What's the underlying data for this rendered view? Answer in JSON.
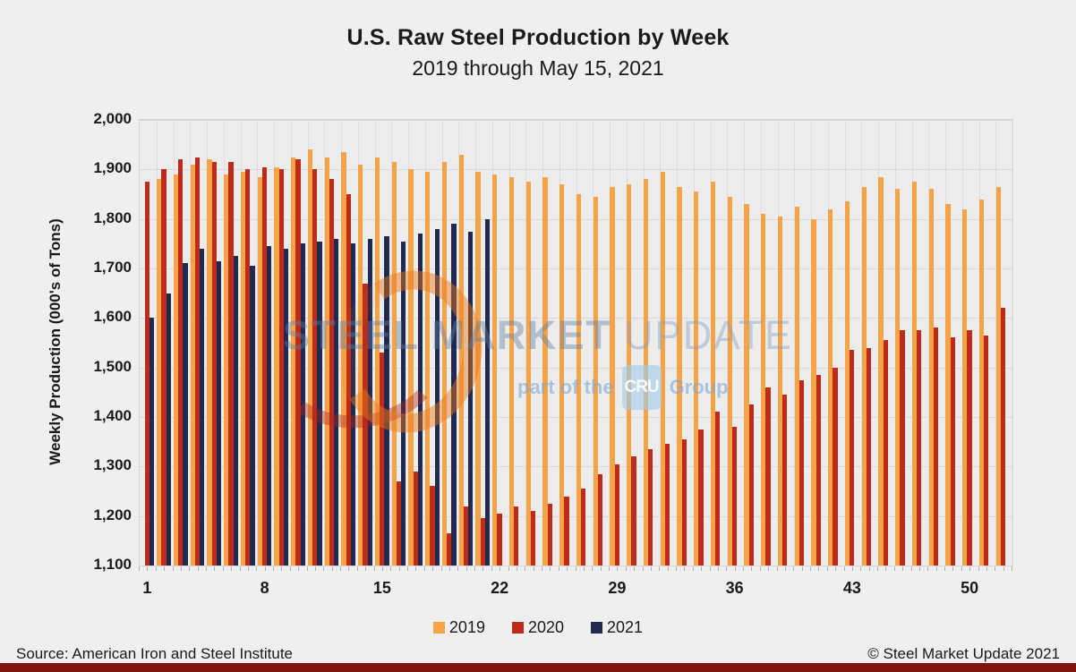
{
  "header": {
    "title": "U.S. Raw Steel Production by Week",
    "subtitle": "2019 through May 15, 2021"
  },
  "chart_data": {
    "type": "bar",
    "title": "U.S. Raw Steel Production by Week",
    "subtitle": "2019 through May 15, 2021",
    "xlabel": "",
    "ylabel": "Weekly Production (000's of Tons)",
    "ylim": [
      1100,
      2000
    ],
    "ytick_step": 100,
    "xticks_shown": [
      1,
      8,
      15,
      22,
      29,
      36,
      43,
      50
    ],
    "grid": true,
    "legend_position": "bottom",
    "categories": [
      1,
      2,
      3,
      4,
      5,
      6,
      7,
      8,
      9,
      10,
      11,
      12,
      13,
      14,
      15,
      16,
      17,
      18,
      19,
      20,
      21,
      22,
      23,
      24,
      25,
      26,
      27,
      28,
      29,
      30,
      31,
      32,
      33,
      34,
      35,
      36,
      37,
      38,
      39,
      40,
      41,
      42,
      43,
      44,
      45,
      46,
      47,
      48,
      49,
      50,
      51,
      52
    ],
    "series": [
      {
        "name": "2019",
        "color": "#F5A346",
        "values": [
          null,
          1880,
          1890,
          1910,
          1920,
          1890,
          1895,
          1885,
          1905,
          1925,
          1940,
          1925,
          1935,
          1910,
          1925,
          1915,
          1900,
          1895,
          1915,
          1930,
          1895,
          1890,
          1885,
          1875,
          1885,
          1870,
          1850,
          1845,
          1865,
          1870,
          1880,
          1895,
          1865,
          1855,
          1875,
          1845,
          1830,
          1810,
          1805,
          1825,
          1800,
          1820,
          1835,
          1865,
          1885,
          1860,
          1875,
          1860,
          1830,
          1820,
          1840,
          1865
        ]
      },
      {
        "name": "2020",
        "color": "#BF2B1B",
        "values": [
          1875,
          1900,
          1920,
          1925,
          1915,
          1915,
          1900,
          1905,
          1900,
          1920,
          1900,
          1880,
          1850,
          1670,
          1530,
          1270,
          1290,
          1260,
          1165,
          1220,
          1195,
          1205,
          1220,
          1210,
          1225,
          1240,
          1255,
          1285,
          1305,
          1320,
          1335,
          1345,
          1355,
          1375,
          1410,
          1380,
          1425,
          1460,
          1445,
          1475,
          1485,
          1500,
          1535,
          1540,
          1555,
          1575,
          1575,
          1580,
          1560,
          1575,
          1565,
          1620
        ]
      },
      {
        "name": "2021",
        "color": "#20294F",
        "values": [
          1600,
          1650,
          1710,
          1740,
          1715,
          1725,
          1705,
          1745,
          1740,
          1750,
          1755,
          1760,
          1750,
          1760,
          1765,
          1755,
          1770,
          1780,
          1790,
          1775,
          1800,
          null,
          null,
          null,
          null,
          null,
          null,
          null,
          null,
          null,
          null,
          null,
          null,
          null,
          null,
          null,
          null,
          null,
          null,
          null,
          null,
          null,
          null,
          null,
          null,
          null,
          null,
          null,
          null,
          null,
          null,
          null
        ]
      }
    ]
  },
  "watermark": {
    "line1_bold": "STEEL MARKET",
    "line1_light": " UPDATE",
    "line2_prefix": "part of the",
    "line2_badge": "CRU",
    "line2_suffix": "Group"
  },
  "footer": {
    "source": "Source: American Iron and Steel Institute",
    "copyright": "© Steel Market Update 2021"
  },
  "colors": {
    "page_bg": "#EFEFEF",
    "plot_bg": "#ECECEC",
    "gridline": "#D9D9D9",
    "text": "#1a1a1a",
    "bottom_band": "#7E150D",
    "series_2019": "#F5A346",
    "series_2020": "#BF2B1B",
    "series_2021": "#20294F"
  }
}
